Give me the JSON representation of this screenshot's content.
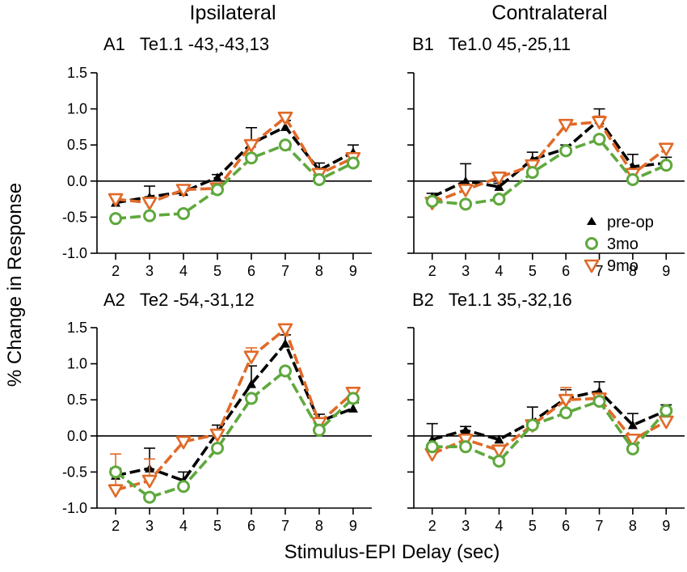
{
  "figure": {
    "col_titles": [
      "Ipsilateral",
      "Contralateral"
    ],
    "xlabel": "Stimulus-EPI Delay (sec)",
    "ylabel": "% Change in Response"
  },
  "legend": {
    "entries": [
      {
        "key": "preop",
        "label": "pre-op"
      },
      {
        "key": "m3",
        "label": "3mo"
      },
      {
        "key": "m9",
        "label": "9mo"
      }
    ]
  },
  "colors": {
    "preop": "#000000",
    "m3": "#5fa83d",
    "m9": "#e06a28"
  },
  "chart_data": [
    {
      "type": "line",
      "panel": "A1",
      "title": "A1   Te1.1 -43,-43,13",
      "x": [
        2,
        3,
        4,
        5,
        6,
        7,
        8,
        9
      ],
      "xticks": [
        "2",
        "3",
        "4",
        "5",
        "6",
        "7",
        "8",
        "9"
      ],
      "ylim": [
        -1.0,
        1.5
      ],
      "yticks": [
        "-1.0",
        "-0.5",
        "0.0",
        "0.5",
        "1.0",
        "1.5"
      ],
      "series": [
        {
          "key": "preop",
          "name": "pre-op",
          "values": [
            -0.3,
            -0.22,
            -0.15,
            0.05,
            0.52,
            0.75,
            0.15,
            0.4
          ],
          "err": [
            0.08,
            0.15,
            0.08,
            0.04,
            0.22,
            0.09,
            0.1,
            0.1
          ]
        },
        {
          "key": "m3",
          "name": "3mo",
          "values": [
            -0.52,
            -0.48,
            -0.45,
            -0.12,
            0.32,
            0.5,
            0.02,
            0.25
          ],
          "err": [
            0,
            0,
            0,
            0,
            0,
            0,
            0,
            0
          ]
        },
        {
          "key": "m9",
          "name": "9mo",
          "values": [
            -0.25,
            -0.3,
            -0.12,
            -0.1,
            0.5,
            0.88,
            0.1,
            0.32
          ],
          "err": [
            0.05,
            0.05,
            0.05,
            0.03,
            0.07,
            0.05,
            0.05,
            0.05
          ]
        }
      ]
    },
    {
      "type": "line",
      "panel": "B1",
      "title": "B1   Te1.0 45,-25,11",
      "x": [
        2,
        3,
        4,
        5,
        6,
        7,
        8,
        9
      ],
      "xticks": [
        "2",
        "3",
        "4",
        "5",
        "6",
        "7",
        "8",
        "9"
      ],
      "ylim": [
        -1.0,
        1.5
      ],
      "yticks": [
        "-1.0",
        "-0.5",
        "0.0",
        "0.5",
        "1.0",
        "1.5"
      ],
      "series": [
        {
          "key": "preop",
          "name": "pre-op",
          "values": [
            -0.22,
            0.0,
            -0.08,
            0.3,
            0.45,
            0.85,
            0.2,
            0.25
          ],
          "err": [
            0.05,
            0.24,
            0.05,
            0.1,
            0.05,
            0.15,
            0.17,
            0.08
          ]
        },
        {
          "key": "m3",
          "name": "3mo",
          "values": [
            -0.28,
            -0.32,
            -0.25,
            0.12,
            0.42,
            0.58,
            0.02,
            0.22
          ],
          "err": [
            0,
            0,
            0,
            0,
            0,
            0,
            0,
            0
          ]
        },
        {
          "key": "m9",
          "name": "9mo",
          "values": [
            -0.3,
            -0.12,
            0.05,
            0.22,
            0.78,
            0.82,
            0.1,
            0.45
          ],
          "err": [
            0.05,
            0.05,
            0.05,
            0.05,
            0.05,
            0.08,
            0.05,
            0.05
          ]
        }
      ]
    },
    {
      "type": "line",
      "panel": "A2",
      "title": "A2   Te2 -54,-31,12",
      "x": [
        2,
        3,
        4,
        5,
        6,
        7,
        8,
        9
      ],
      "xticks": [
        "2",
        "3",
        "4",
        "5",
        "6",
        "7",
        "8",
        "9"
      ],
      "ylim": [
        -1.0,
        1.5
      ],
      "yticks": [
        "-1.0",
        "-0.5",
        "0.0",
        "0.5",
        "1.0",
        "1.5"
      ],
      "series": [
        {
          "key": "preop",
          "name": "pre-op",
          "values": [
            -0.55,
            -0.45,
            -0.62,
            0.05,
            0.72,
            1.28,
            0.2,
            0.38
          ],
          "err": [
            0.1,
            0.28,
            0.12,
            0.1,
            0.25,
            0.12,
            0.1,
            0.08
          ]
        },
        {
          "key": "m3",
          "name": "3mo",
          "values": [
            -0.5,
            -0.85,
            -0.7,
            -0.17,
            0.52,
            0.9,
            0.08,
            0.52
          ],
          "err": [
            0,
            0,
            0,
            0,
            0,
            0,
            0,
            0
          ]
        },
        {
          "key": "m9",
          "name": "9mo",
          "values": [
            -0.75,
            -0.62,
            -0.08,
            0.02,
            1.1,
            1.48,
            0.18,
            0.6
          ],
          "err": [
            0.5,
            0.3,
            0.05,
            0.05,
            0.12,
            0.05,
            0.05,
            0.05
          ]
        }
      ]
    },
    {
      "type": "line",
      "panel": "B2",
      "title": "B2   Te1.1 35,-32,16",
      "x": [
        2,
        3,
        4,
        5,
        6,
        7,
        8,
        9
      ],
      "xticks": [
        "2",
        "3",
        "4",
        "5",
        "6",
        "7",
        "8",
        "9"
      ],
      "ylim": [
        -1.0,
        1.5
      ],
      "yticks": [
        "-1.0",
        "-0.5",
        "0.0",
        "0.5",
        "1.0",
        "1.5"
      ],
      "series": [
        {
          "key": "preop",
          "name": "pre-op",
          "values": [
            -0.05,
            0.08,
            -0.05,
            0.2,
            0.52,
            0.62,
            0.15,
            0.35
          ],
          "err": [
            0.22,
            0.05,
            0.05,
            0.2,
            0.12,
            0.13,
            0.16,
            0.08
          ]
        },
        {
          "key": "m3",
          "name": "3mo",
          "values": [
            -0.15,
            -0.15,
            -0.35,
            0.15,
            0.32,
            0.48,
            -0.18,
            0.35
          ],
          "err": [
            0,
            0,
            0,
            0,
            0,
            0,
            0,
            0
          ]
        },
        {
          "key": "m9",
          "name": "9mo",
          "values": [
            -0.25,
            -0.05,
            -0.2,
            0.15,
            0.5,
            0.52,
            -0.05,
            0.2
          ],
          "err": [
            0.05,
            0.05,
            0.05,
            0.05,
            0.17,
            0.05,
            0.05,
            0.05
          ]
        }
      ]
    }
  ]
}
